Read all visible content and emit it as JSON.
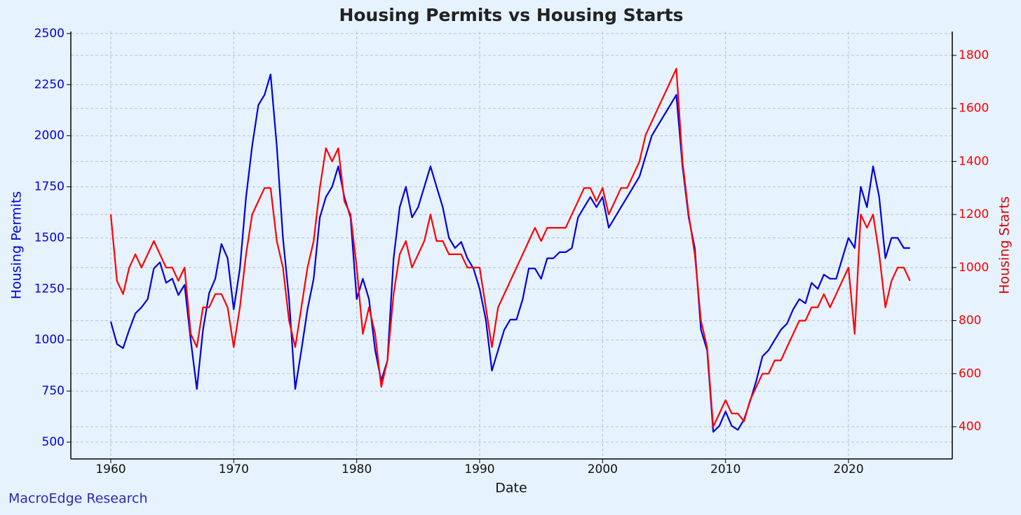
{
  "chart_data": {
    "type": "line",
    "title": "Housing Permits vs Housing Starts",
    "xlabel": "Date",
    "ylabel": "Housing Permits",
    "y2label": "Housing Starts",
    "source": "MacroEdge Research",
    "grid": true,
    "x": [
      1960,
      1960.5,
      1961,
      1961.5,
      1962,
      1962.5,
      1963,
      1963.5,
      1964,
      1964.5,
      1965,
      1965.5,
      1966,
      1966.5,
      1967,
      1967.5,
      1968,
      1968.5,
      1969,
      1969.5,
      1970,
      1970.5,
      1971,
      1971.5,
      1972,
      1972.5,
      1973,
      1973.5,
      1974,
      1974.5,
      1975,
      1975.5,
      1976,
      1976.5,
      1977,
      1977.5,
      1978,
      1978.5,
      1979,
      1979.5,
      1980,
      1980.5,
      1981,
      1981.5,
      1982,
      1982.5,
      1983,
      1983.5,
      1984,
      1984.5,
      1985,
      1985.5,
      1986,
      1986.5,
      1987,
      1987.5,
      1988,
      1988.5,
      1989,
      1989.5,
      1990,
      1990.5,
      1991,
      1991.5,
      1992,
      1992.5,
      1993,
      1993.5,
      1994,
      1994.5,
      1995,
      1995.5,
      1996,
      1996.5,
      1997,
      1997.5,
      1998,
      1998.5,
      1999,
      1999.5,
      2000,
      2000.5,
      2001,
      2001.5,
      2002,
      2002.5,
      2003,
      2003.5,
      2004,
      2004.5,
      2005,
      2005.5,
      2006,
      2006.5,
      2007,
      2007.5,
      2008,
      2008.5,
      2009,
      2009.5,
      2010,
      2010.5,
      2011,
      2011.5,
      2012,
      2012.5,
      2013,
      2013.5,
      2014,
      2014.5,
      2015,
      2015.5,
      2016,
      2016.5,
      2017,
      2017.5,
      2018,
      2018.5,
      2019,
      2019.5,
      2020,
      2020.5,
      2021,
      2021.5,
      2022,
      2022.5,
      2023,
      2023.5,
      2024,
      2024.5,
      2025
    ],
    "series": [
      {
        "name": "Housing Permits",
        "color": "#0000dd",
        "values": [
          1090,
          980,
          960,
          1050,
          1130,
          1160,
          1200,
          1350,
          1380,
          1280,
          1300,
          1220,
          1270,
          1000,
          760,
          1050,
          1230,
          1300,
          1470,
          1400,
          1150,
          1350,
          1700,
          1950,
          2150,
          2200,
          2300,
          1950,
          1500,
          1200,
          760,
          950,
          1150,
          1300,
          1600,
          1700,
          1750,
          1850,
          1700,
          1600,
          1200,
          1300,
          1200,
          950,
          800,
          900,
          1400,
          1650,
          1750,
          1600,
          1650,
          1750,
          1850,
          1750,
          1650,
          1500,
          1450,
          1480,
          1400,
          1350,
          1250,
          1100,
          850,
          950,
          1050,
          1100,
          1100,
          1200,
          1350,
          1350,
          1300,
          1400,
          1400,
          1430,
          1430,
          1450,
          1600,
          1650,
          1700,
          1650,
          1700,
          1550,
          1600,
          1650,
          1700,
          1750,
          1800,
          1900,
          2000,
          2050,
          2100,
          2150,
          2200,
          1850,
          1600,
          1450,
          1050,
          950,
          550,
          580,
          650,
          580,
          560,
          610,
          700,
          800,
          920,
          950,
          1000,
          1050,
          1080,
          1150,
          1200,
          1180,
          1280,
          1250,
          1320,
          1300,
          1300,
          1400,
          1500,
          1450,
          1750,
          1650,
          1850,
          1700,
          1400,
          1500,
          1500,
          1450,
          1450
        ]
      },
      {
        "name": "Housing Starts",
        "color": "#ff0000",
        "axis": "y2",
        "values": [
          1200,
          950,
          900,
          1000,
          1050,
          1000,
          1050,
          1100,
          1050,
          1000,
          1000,
          950,
          1000,
          750,
          700,
          850,
          850,
          900,
          900,
          850,
          700,
          850,
          1050,
          1200,
          1250,
          1300,
          1300,
          1100,
          1000,
          800,
          700,
          850,
          1000,
          1100,
          1300,
          1450,
          1400,
          1450,
          1250,
          1200,
          1000,
          750,
          850,
          750,
          550,
          650,
          900,
          1050,
          1100,
          1000,
          1050,
          1100,
          1200,
          1100,
          1100,
          1050,
          1050,
          1050,
          1000,
          1000,
          1000,
          850,
          700,
          850,
          900,
          950,
          1000,
          1050,
          1100,
          1150,
          1100,
          1150,
          1150,
          1150,
          1150,
          1200,
          1250,
          1300,
          1300,
          1250,
          1300,
          1200,
          1250,
          1300,
          1300,
          1350,
          1400,
          1500,
          1550,
          1600,
          1650,
          1700,
          1750,
          1400,
          1200,
          1050,
          800,
          700,
          400,
          450,
          500,
          450,
          450,
          420,
          500,
          550,
          600,
          600,
          650,
          650,
          700,
          750,
          800,
          800,
          850,
          850,
          900,
          850,
          900,
          950,
          1000,
          750,
          1200,
          1150,
          1200,
          1050,
          850,
          950,
          1000,
          1000,
          950
        ]
      }
    ],
    "xlim": [
      1956.75,
      2028.44
    ],
    "xticks": [
      1960,
      1970,
      1980,
      1990,
      2000,
      2010,
      2020
    ],
    "ylim": [
      417.7,
      2510
    ],
    "yticks": [
      500,
      750,
      1000,
      1250,
      1500,
      1750,
      2000,
      2250,
      2500
    ],
    "y2lim": [
      278.5,
      1889.8
    ],
    "y2ticks": [
      400,
      600,
      800,
      1000,
      1200,
      1400,
      1600,
      1800
    ]
  }
}
